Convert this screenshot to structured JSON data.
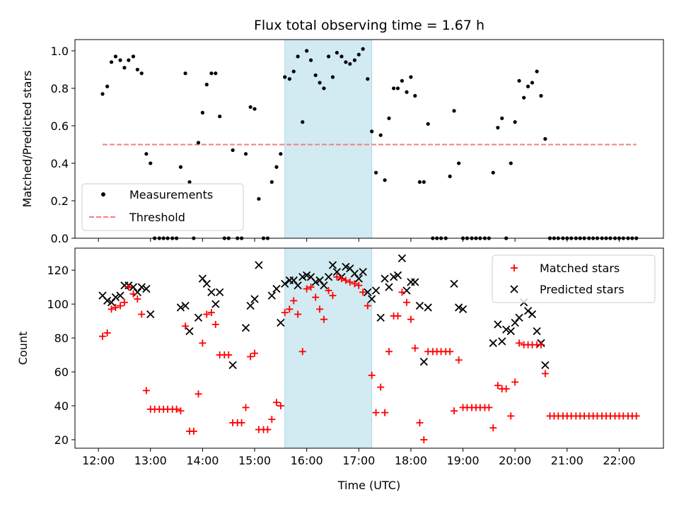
{
  "chart_data": [
    {
      "type": "scatter",
      "title": "Flux total observing time = 1.67 h",
      "xlabel": "",
      "ylabel": "Matched/Predicted stars",
      "xlim": [
        11.55,
        22.85
      ],
      "ylim": [
        0,
        1.06
      ],
      "y_ticks": [
        "0.0",
        "0.2",
        "0.4",
        "0.6",
        "0.8",
        "1.0"
      ],
      "y_tick_values": [
        0,
        0.2,
        0.4,
        0.6,
        0.8,
        1.0
      ],
      "highlight_span": {
        "x_start": 15.58,
        "x_end": 17.25,
        "color": "#add8e6"
      },
      "legend_position": "lower-left",
      "series": [
        {
          "name": "Measurements",
          "color": "#000000",
          "marker": "dot",
          "x": [
            12.08,
            12.17,
            12.25,
            12.33,
            12.42,
            12.5,
            12.58,
            12.67,
            12.75,
            12.83,
            12.92,
            13.0,
            13.08,
            13.17,
            13.25,
            13.33,
            13.42,
            13.5,
            13.58,
            13.67,
            13.75,
            13.83,
            13.92,
            14.0,
            14.08,
            14.17,
            14.25,
            14.33,
            14.42,
            14.5,
            14.58,
            14.67,
            14.75,
            14.83,
            14.92,
            15.0,
            15.08,
            15.17,
            15.25,
            15.33,
            15.42,
            15.5,
            15.58,
            15.67,
            15.75,
            15.83,
            15.92,
            16.0,
            16.08,
            16.17,
            16.25,
            16.33,
            16.42,
            16.5,
            16.58,
            16.67,
            16.75,
            16.83,
            16.92,
            17.0,
            17.08,
            17.17,
            17.25,
            17.33,
            17.42,
            17.5,
            17.58,
            17.67,
            17.75,
            17.83,
            17.92,
            18.0,
            18.08,
            18.17,
            18.25,
            18.33,
            18.42,
            18.5,
            18.58,
            18.67,
            18.75,
            18.83,
            18.92,
            19.0,
            19.08,
            19.17,
            19.25,
            19.33,
            19.42,
            19.5,
            19.58,
            19.67,
            19.75,
            19.83,
            19.92,
            20.0,
            20.08,
            20.17,
            20.25,
            20.33,
            20.42,
            20.5,
            20.58,
            20.67,
            20.75,
            20.83,
            20.92,
            21.0,
            21.08,
            21.17,
            21.25,
            21.33,
            21.42,
            21.5,
            21.58,
            21.67,
            21.75,
            21.83,
            21.92,
            22.0,
            22.08,
            22.17,
            22.25,
            22.33
          ],
          "y": [
            0.77,
            0.81,
            0.94,
            0.97,
            0.95,
            0.91,
            0.95,
            0.97,
            0.9,
            0.88,
            0.45,
            0.4,
            0.0,
            0.0,
            0.0,
            0.0,
            0.0,
            0.0,
            0.38,
            0.88,
            0.3,
            0.0,
            0.51,
            0.67,
            0.82,
            0.88,
            0.88,
            0.65,
            0.0,
            0.0,
            0.47,
            0.0,
            0.0,
            0.45,
            0.7,
            0.69,
            0.21,
            0.0,
            0.0,
            0.3,
            0.38,
            0.45,
            0.86,
            0.85,
            0.89,
            0.97,
            0.62,
            1.0,
            0.95,
            0.87,
            0.83,
            0.8,
            0.97,
            0.86,
            0.99,
            0.97,
            0.94,
            0.93,
            0.95,
            0.98,
            1.01,
            0.85,
            0.57,
            0.35,
            0.55,
            0.31,
            0.64,
            0.8,
            0.8,
            0.84,
            0.78,
            0.86,
            0.76,
            0.3,
            0.3,
            0.61,
            0.0,
            0.0,
            0.0,
            0.0,
            0.33,
            0.68,
            0.4,
            0.0,
            0.0,
            0.0,
            0.0,
            0.0,
            0.0,
            0.0,
            0.35,
            0.59,
            0.64,
            0.0,
            0.4,
            0.62,
            0.84,
            0.75,
            0.81,
            0.83,
            0.89,
            0.76,
            0.53,
            0.0,
            0.0,
            0.0,
            0.0,
            0.0,
            0.0,
            0.0,
            0.0,
            0.0,
            0.0,
            0.0,
            0.0,
            0.0,
            0.0,
            0.0,
            0.0,
            0.0,
            0.0,
            0.0,
            0.0,
            0.0
          ]
        },
        {
          "name": "Threshold",
          "color": "#f08080",
          "marker": "dashed-line",
          "x": [
            12.08,
            22.33
          ],
          "y": [
            0.5,
            0.5
          ]
        }
      ]
    },
    {
      "type": "scatter",
      "title": "",
      "xlabel": "Time (UTC)",
      "ylabel": "Count",
      "xlim": [
        11.55,
        22.85
      ],
      "ylim": [
        15,
        133
      ],
      "x_ticks": [
        "12:00",
        "13:00",
        "14:00",
        "15:00",
        "16:00",
        "17:00",
        "18:00",
        "19:00",
        "20:00",
        "21:00",
        "22:00"
      ],
      "x_tick_values": [
        12,
        13,
        14,
        15,
        16,
        17,
        18,
        19,
        20,
        21,
        22
      ],
      "y_ticks": [
        "20",
        "40",
        "60",
        "80",
        "100",
        "120"
      ],
      "y_tick_values": [
        20,
        40,
        60,
        80,
        100,
        120
      ],
      "highlight_span": {
        "x_start": 15.58,
        "x_end": 17.25,
        "color": "#add8e6"
      },
      "legend_position": "upper-right",
      "series": [
        {
          "name": "Matched stars",
          "color": "#ff0000",
          "marker": "plus",
          "x": [
            12.08,
            12.17,
            12.25,
            12.33,
            12.42,
            12.5,
            12.58,
            12.67,
            12.75,
            12.83,
            12.92,
            13.0,
            13.08,
            13.17,
            13.25,
            13.33,
            13.42,
            13.5,
            13.58,
            13.67,
            13.75,
            13.83,
            13.92,
            14.0,
            14.08,
            14.17,
            14.25,
            14.33,
            14.42,
            14.5,
            14.58,
            14.67,
            14.75,
            14.83,
            14.92,
            15.0,
            15.08,
            15.17,
            15.25,
            15.33,
            15.42,
            15.5,
            15.58,
            15.67,
            15.75,
            15.83,
            15.92,
            16.0,
            16.08,
            16.17,
            16.25,
            16.33,
            16.42,
            16.5,
            16.58,
            16.67,
            16.75,
            16.83,
            16.92,
            17.0,
            17.08,
            17.17,
            17.25,
            17.33,
            17.42,
            17.5,
            17.58,
            17.67,
            17.75,
            17.83,
            17.92,
            18.0,
            18.08,
            18.17,
            18.25,
            18.33,
            18.42,
            18.5,
            18.58,
            18.67,
            18.75,
            18.83,
            18.92,
            19.0,
            19.08,
            19.17,
            19.25,
            19.33,
            19.42,
            19.5,
            19.58,
            19.67,
            19.75,
            19.83,
            19.92,
            20.0,
            20.08,
            20.17,
            20.25,
            20.33,
            20.42,
            20.5,
            20.58,
            20.67,
            20.75,
            20.83,
            20.92,
            21.0,
            21.08,
            21.17,
            21.25,
            21.33,
            21.42,
            21.5,
            21.58,
            21.67,
            21.75,
            21.83,
            21.92,
            22.0,
            22.08,
            22.17,
            22.25,
            22.33
          ],
          "y": [
            81,
            83,
            97,
            98,
            99,
            101,
            110,
            106,
            103,
            94,
            49,
            38,
            38,
            38,
            38,
            38,
            38,
            38,
            37,
            87,
            25,
            25,
            47,
            77,
            94,
            95,
            88,
            70,
            70,
            70,
            30,
            30,
            30,
            39,
            69,
            71,
            26,
            26,
            26,
            32,
            42,
            40,
            95,
            97,
            102,
            94,
            72,
            109,
            110,
            104,
            97,
            91,
            108,
            105,
            116,
            115,
            114,
            113,
            112,
            111,
            107,
            99,
            58,
            36,
            51,
            36,
            72,
            93,
            93,
            107,
            101,
            91,
            74,
            30,
            20,
            72,
            72,
            72,
            72,
            72,
            72,
            37,
            67,
            39,
            39,
            39,
            39,
            39,
            39,
            39,
            27,
            52,
            50,
            50,
            34,
            54,
            77,
            76,
            76,
            76,
            76,
            76,
            59,
            34,
            34,
            34,
            34,
            34,
            34,
            34,
            34,
            34,
            34,
            34,
            34,
            34,
            34,
            34,
            34,
            34,
            34,
            34,
            34,
            34
          ]
        },
        {
          "name": "Predicted stars",
          "color": "#000000",
          "marker": "x",
          "x": [
            12.08,
            12.17,
            12.25,
            12.33,
            12.42,
            12.5,
            12.58,
            12.67,
            12.75,
            12.83,
            12.92,
            13.0,
            13.58,
            13.67,
            13.75,
            13.92,
            14.0,
            14.08,
            14.17,
            14.25,
            14.33,
            14.58,
            14.83,
            14.92,
            15.0,
            15.08,
            15.33,
            15.42,
            15.5,
            15.58,
            15.67,
            15.75,
            15.83,
            15.92,
            16.0,
            16.08,
            16.17,
            16.25,
            16.33,
            16.42,
            16.5,
            16.58,
            16.67,
            16.75,
            16.83,
            16.92,
            17.0,
            17.08,
            17.17,
            17.25,
            17.33,
            17.42,
            17.5,
            17.58,
            17.67,
            17.75,
            17.83,
            17.92,
            18.0,
            18.08,
            18.17,
            18.25,
            18.33,
            18.83,
            18.92,
            19.0,
            19.58,
            19.67,
            19.75,
            19.83,
            19.92,
            20.0,
            20.08,
            20.17,
            20.25,
            20.33,
            20.42,
            20.5,
            20.58
          ],
          "y": [
            105,
            102,
            101,
            104,
            105,
            111,
            111,
            110,
            107,
            110,
            109,
            94,
            98,
            99,
            84,
            92,
            115,
            112,
            107,
            100,
            107,
            64,
            86,
            99,
            103,
            123,
            105,
            109,
            89,
            112,
            114,
            114,
            111,
            116,
            117,
            116,
            113,
            114,
            111,
            116,
            123,
            119,
            116,
            122,
            121,
            118,
            115,
            119,
            107,
            103,
            108,
            92,
            115,
            110,
            116,
            117,
            127,
            108,
            113,
            113,
            99,
            66,
            98,
            112,
            98,
            97,
            77,
            88,
            78,
            85,
            84,
            89,
            92,
            101,
            96,
            94,
            84,
            77,
            64
          ]
        }
      ]
    }
  ]
}
